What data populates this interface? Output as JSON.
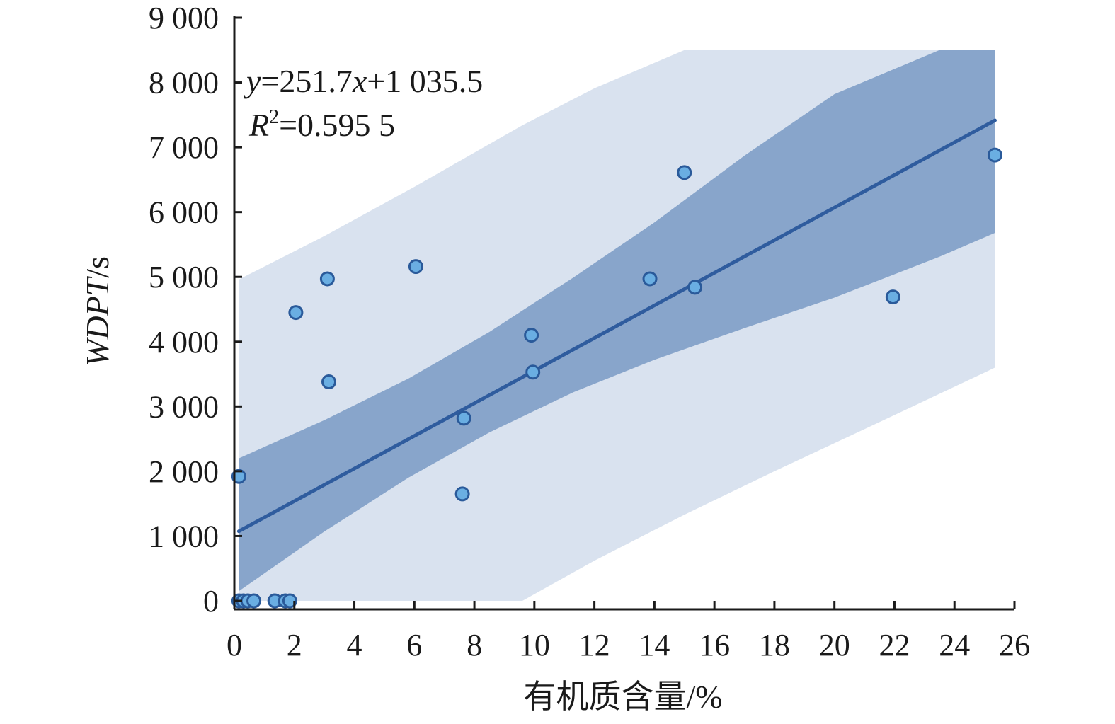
{
  "chart_data": {
    "type": "scatter",
    "xlabel": "有机质含量/%",
    "ylabel_italic": "WDPT",
    "ylabel_unit": "/s",
    "xlim": [
      0,
      26
    ],
    "ylim": [
      0,
      9000
    ],
    "x_ticks": [
      0,
      2,
      4,
      6,
      8,
      10,
      12,
      14,
      16,
      18,
      20,
      22,
      24,
      26
    ],
    "x_tick_labels": [
      "0",
      "2",
      "4",
      "6",
      "8",
      "10",
      "12",
      "14",
      "16",
      "18",
      "20",
      "22",
      "24",
      "26"
    ],
    "y_ticks": [
      0,
      1000,
      2000,
      3000,
      4000,
      5000,
      6000,
      7000,
      8000,
      9000
    ],
    "y_tick_labels": [
      "0",
      "1 000",
      "2 000",
      "3 000",
      "4 000",
      "5 000",
      "6 000",
      "7 000",
      "8 000",
      "9 000"
    ],
    "points": [
      {
        "x": 0.15,
        "y": 0
      },
      {
        "x": 0.3,
        "y": 0
      },
      {
        "x": 0.45,
        "y": 0
      },
      {
        "x": 0.65,
        "y": 0
      },
      {
        "x": 1.35,
        "y": 0
      },
      {
        "x": 1.7,
        "y": 0
      },
      {
        "x": 1.85,
        "y": 0
      },
      {
        "x": 0.15,
        "y": 1920
      },
      {
        "x": 2.05,
        "y": 4450
      },
      {
        "x": 3.1,
        "y": 4970
      },
      {
        "x": 3.15,
        "y": 3380
      },
      {
        "x": 6.05,
        "y": 5160
      },
      {
        "x": 7.6,
        "y": 1650
      },
      {
        "x": 7.65,
        "y": 2820
      },
      {
        "x": 9.9,
        "y": 4100
      },
      {
        "x": 9.95,
        "y": 3530
      },
      {
        "x": 13.85,
        "y": 4970
      },
      {
        "x": 15.0,
        "y": 6610
      },
      {
        "x": 15.35,
        "y": 4840
      },
      {
        "x": 21.95,
        "y": 4690
      },
      {
        "x": 25.35,
        "y": 6880
      }
    ],
    "fit": {
      "slope": 251.7,
      "intercept": 1035.5,
      "x_range": [
        0.15,
        25.35
      ]
    },
    "confidence_band": {
      "x": [
        0.15,
        3.0,
        5.8,
        8.5,
        11.3,
        14.0,
        17.0,
        20.0,
        23.5,
        25.35
      ],
      "lower": [
        150,
        1070,
        1900,
        2600,
        3220,
        3720,
        4210,
        4680,
        5310,
        5680
      ],
      "upper": [
        2200,
        2790,
        3430,
        4150,
        4990,
        5840,
        6870,
        7820,
        8500,
        8500
      ]
    },
    "prediction_band": {
      "x": [
        0.15,
        3.0,
        6.0,
        9.6,
        12.0,
        15.0,
        18.0,
        21.0,
        25.35
      ],
      "lower": [
        0,
        0,
        0,
        0,
        620,
        1330,
        2000,
        2650,
        3600
      ],
      "upper": [
        4960,
        5630,
        6390,
        7340,
        7910,
        8500,
        8500,
        8500,
        8500
      ]
    },
    "equation_y": "y",
    "equation_rest": "=251.7",
    "equation_x": "x",
    "equation_tail": "+1 035.5",
    "r2_label": "R",
    "r2_sup": "2",
    "r2_value": "=0.595 5",
    "colors": {
      "prediction_band": "#d9e2ef",
      "confidence_band": "#88a5cb",
      "fit_line": "#2f5c9e",
      "point_fill": "#6aaee2",
      "point_stroke": "#2a5a9a",
      "axis": "#1a1a1a"
    }
  }
}
